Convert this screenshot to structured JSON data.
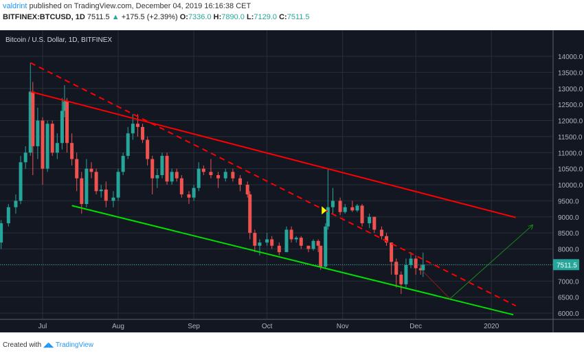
{
  "header": {
    "user": "valdrint",
    "published": "published on TradingView.com, December 04, 2019 16:16:38 CET",
    "symbol": "BITFINEX:BTCUSD, 1D",
    "last": "7511.5",
    "change": "+175.5 (+2.39%)",
    "o_label": "O:",
    "o": "7336.0",
    "h_label": "H:",
    "h": "7890.0",
    "l_label": "L:",
    "l": "7129.0",
    "c_label": "C:",
    "c": "7511.5",
    "up_icon": "triangle-up-icon"
  },
  "footer": {
    "created": "Created with",
    "brand": "TradingView"
  },
  "colors": {
    "up": "#26a69a",
    "down": "#ef5350",
    "background": "#131722",
    "grid": "#2a2e39",
    "channel_upper": "#ff0000",
    "channel_lower": "#00e000",
    "marker": "#ffff00"
  },
  "chart_data": {
    "type": "candlestick",
    "title": "Bitcoin / U.S. Dollar, 1D, BITFINEX",
    "ylim": [
      5600,
      14600
    ],
    "yticks": [
      6000,
      6500,
      7000,
      7500,
      8000,
      8500,
      9000,
      9500,
      10000,
      10500,
      11000,
      11500,
      12000,
      12500,
      13000,
      13500,
      14000
    ],
    "xticks": [
      {
        "date": "2019-07-01",
        "label": "Jul"
      },
      {
        "date": "2019-08-01",
        "label": "Aug"
      },
      {
        "date": "2019-09-01",
        "label": "Sep"
      },
      {
        "date": "2019-10-01",
        "label": "Oct"
      },
      {
        "date": "2019-11-01",
        "label": "Nov"
      },
      {
        "date": "2019-12-01",
        "label": "Dec"
      },
      {
        "date": "2020-01-01",
        "label": "2020"
      }
    ],
    "last_price_label": "7511.5",
    "last_price": 7511.5,
    "candles": [
      [
        "2019-06-14",
        8200,
        8900,
        8000,
        8800
      ],
      [
        "2019-06-17",
        8800,
        9400,
        8700,
        9300
      ],
      [
        "2019-06-20",
        9300,
        9700,
        9100,
        9500
      ],
      [
        "2019-06-22",
        9500,
        10900,
        9400,
        10700
      ],
      [
        "2019-06-24",
        10700,
        11200,
        10500,
        11000
      ],
      [
        "2019-06-26",
        11000,
        13800,
        10900,
        12900
      ],
      [
        "2019-06-27",
        12900,
        13200,
        10300,
        11200
      ],
      [
        "2019-06-29",
        11200,
        12400,
        10800,
        12000
      ],
      [
        "2019-07-01",
        12000,
        12100,
        10000,
        10500
      ],
      [
        "2019-07-03",
        10500,
        12000,
        10400,
        11900
      ],
      [
        "2019-07-05",
        11900,
        12000,
        10900,
        11000
      ],
      [
        "2019-07-07",
        11000,
        11600,
        10800,
        11300
      ],
      [
        "2019-07-09",
        11300,
        12700,
        11100,
        12300
      ],
      [
        "2019-07-10",
        12300,
        13100,
        12100,
        12600
      ],
      [
        "2019-07-11",
        12600,
        12700,
        11000,
        11300
      ],
      [
        "2019-07-13",
        11300,
        11600,
        10600,
        10800
      ],
      [
        "2019-07-15",
        10800,
        11000,
        9800,
        10200
      ],
      [
        "2019-07-17",
        10200,
        10400,
        9100,
        9400
      ],
      [
        "2019-07-19",
        9400,
        10800,
        9300,
        10500
      ],
      [
        "2019-07-21",
        10500,
        10700,
        10200,
        10400
      ],
      [
        "2019-07-23",
        10400,
        10500,
        9700,
        9800
      ],
      [
        "2019-07-25",
        9800,
        10000,
        9600,
        9850
      ],
      [
        "2019-07-27",
        9850,
        10100,
        9300,
        9500
      ],
      [
        "2019-07-30",
        9500,
        9800,
        9300,
        9600
      ],
      [
        "2019-08-01",
        9600,
        10500,
        9500,
        10400
      ],
      [
        "2019-08-03",
        10400,
        11000,
        10300,
        10900
      ],
      [
        "2019-08-05",
        10900,
        11800,
        10800,
        11600
      ],
      [
        "2019-08-07",
        11600,
        12200,
        11400,
        11900
      ],
      [
        "2019-08-09",
        11900,
        12200,
        11500,
        11800
      ],
      [
        "2019-08-11",
        11800,
        11900,
        11300,
        11400
      ],
      [
        "2019-08-13",
        11400,
        11500,
        10600,
        10800
      ],
      [
        "2019-08-15",
        10800,
        10900,
        9700,
        10200
      ],
      [
        "2019-08-17",
        10200,
        10500,
        9900,
        10300
      ],
      [
        "2019-08-19",
        10300,
        11000,
        10200,
        10900
      ],
      [
        "2019-08-21",
        10900,
        11000,
        10000,
        10100
      ],
      [
        "2019-08-23",
        10100,
        10500,
        10000,
        10400
      ],
      [
        "2019-08-25",
        10400,
        10500,
        10100,
        10200
      ],
      [
        "2019-08-27",
        10200,
        10300,
        9600,
        9700
      ],
      [
        "2019-08-30",
        9700,
        9800,
        9400,
        9600
      ],
      [
        "2019-09-01",
        9600,
        10000,
        9500,
        9900
      ],
      [
        "2019-09-03",
        9900,
        10700,
        9800,
        10500
      ],
      [
        "2019-09-05",
        10500,
        10600,
        10300,
        10400
      ],
      [
        "2019-09-08",
        10400,
        10800,
        10200,
        10300
      ],
      [
        "2019-09-11",
        10300,
        10400,
        9900,
        10200
      ],
      [
        "2019-09-14",
        10200,
        10500,
        10100,
        10400
      ],
      [
        "2019-09-17",
        10400,
        10500,
        10100,
        10200
      ],
      [
        "2019-09-20",
        10200,
        10300,
        9800,
        10000
      ],
      [
        "2019-09-23",
        10000,
        10100,
        9600,
        9700
      ],
      [
        "2019-09-24",
        9700,
        9800,
        8300,
        8500
      ],
      [
        "2019-09-26",
        8500,
        8600,
        7900,
        8100
      ],
      [
        "2019-09-28",
        8100,
        8300,
        7800,
        8200
      ],
      [
        "2019-10-01",
        8200,
        8500,
        8100,
        8300
      ],
      [
        "2019-10-03",
        8300,
        8400,
        8000,
        8100
      ],
      [
        "2019-10-06",
        8100,
        8200,
        7800,
        7900
      ],
      [
        "2019-10-09",
        7900,
        8700,
        7900,
        8600
      ],
      [
        "2019-10-11",
        8600,
        8700,
        8200,
        8300
      ],
      [
        "2019-10-13",
        8300,
        8400,
        8200,
        8350
      ],
      [
        "2019-10-15",
        8350,
        8400,
        8000,
        8100
      ],
      [
        "2019-10-18",
        8100,
        8100,
        7900,
        8000
      ],
      [
        "2019-10-20",
        8000,
        8300,
        7950,
        8250
      ],
      [
        "2019-10-22",
        8250,
        8300,
        7900,
        8100
      ],
      [
        "2019-10-23",
        8100,
        8100,
        7350,
        7450
      ],
      [
        "2019-10-25",
        7450,
        8800,
        7400,
        8700
      ],
      [
        "2019-10-26",
        8700,
        10500,
        8600,
        9300
      ],
      [
        "2019-10-28",
        9300,
        9900,
        9100,
        9500
      ],
      [
        "2019-10-31",
        9500,
        9600,
        9050,
        9150
      ],
      [
        "2019-11-02",
        9150,
        9400,
        9100,
        9300
      ],
      [
        "2019-11-05",
        9300,
        9500,
        9150,
        9200
      ],
      [
        "2019-11-07",
        9200,
        9400,
        9150,
        9350
      ],
      [
        "2019-11-09",
        9350,
        9400,
        8700,
        8800
      ],
      [
        "2019-11-12",
        8800,
        9100,
        8650,
        9000
      ],
      [
        "2019-11-14",
        9000,
        9000,
        8500,
        8600
      ],
      [
        "2019-11-17",
        8600,
        8700,
        8300,
        8400
      ],
      [
        "2019-11-19",
        8400,
        8500,
        8100,
        8200
      ],
      [
        "2019-11-21",
        8200,
        8200,
        7200,
        7600
      ],
      [
        "2019-11-23",
        7600,
        7700,
        6800,
        7200
      ],
      [
        "2019-11-25",
        7200,
        7300,
        6600,
        6900
      ],
      [
        "2019-11-27",
        6900,
        7700,
        6800,
        7500
      ],
      [
        "2019-11-29",
        7500,
        7900,
        7400,
        7700
      ],
      [
        "2019-12-01",
        7700,
        7800,
        7200,
        7400
      ],
      [
        "2019-12-03",
        7400,
        7500,
        7200,
        7336
      ],
      [
        "2019-12-04",
        7336,
        7890,
        7129,
        7511.5
      ]
    ],
    "drawings": [
      {
        "name": "upper-channel-line",
        "style": "solid",
        "color": "#ff0000",
        "points": [
          [
            "2019-06-26",
            12900
          ],
          [
            "2020-01-11",
            8980
          ]
        ]
      },
      {
        "name": "dashed-resistance-line",
        "style": "dashed",
        "color": "#ff0000",
        "points": [
          [
            "2019-06-26",
            13800
          ],
          [
            "2020-01-11",
            6230
          ]
        ]
      },
      {
        "name": "lower-channel-line",
        "style": "solid",
        "color": "#00e000",
        "points": [
          [
            "2019-07-13",
            9350
          ],
          [
            "2020-01-10",
            5950
          ]
        ]
      },
      {
        "name": "projection-down",
        "style": "thin",
        "color": "#8b1a1a",
        "points": [
          [
            "2019-12-04",
            7300
          ],
          [
            "2019-12-15",
            6450
          ]
        ]
      },
      {
        "name": "projection-up-arrow",
        "style": "thin-arrow",
        "color": "#1b8a1b",
        "points": [
          [
            "2019-12-15",
            6450
          ],
          [
            "2020-01-18",
            8750
          ]
        ]
      }
    ],
    "markers": [
      {
        "name": "flag-marker",
        "date": "2019-10-24",
        "price": 9200,
        "color": "#ffff00"
      }
    ]
  }
}
